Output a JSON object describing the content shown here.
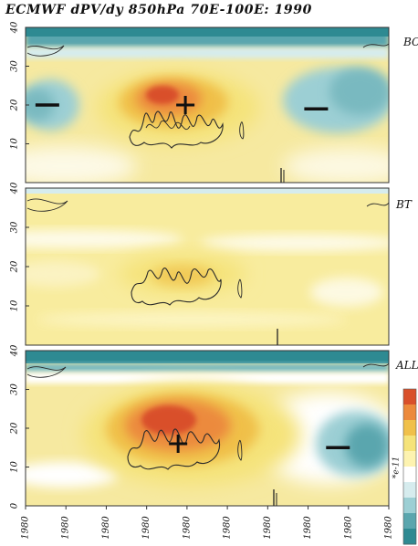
{
  "title": "ECMWF dPV/dy 850hPa 70E-100E: 1990",
  "chart_data": {
    "type": "heatmap",
    "variable": "dPV/dy",
    "level": "850hPa",
    "longitude_band": "70E-100E",
    "year": "1990",
    "colorbar": {
      "unit_label": "*e-11",
      "colors": [
        "#2e8a92",
        "#5aa6ae",
        "#9ccfd4",
        "#d6ecee",
        "#ffffff",
        "#fdf3b0",
        "#f5e37a",
        "#f0c04a",
        "#ec8a3c",
        "#d9502b"
      ]
    },
    "x_tick_labels": [
      "1980",
      "1980",
      "1980",
      "1980",
      "1980",
      "1980",
      "1980",
      "1980",
      "1980",
      "1980"
    ],
    "panels": [
      {
        "label": "BC",
        "y_ticks": [
          10,
          20,
          30,
          40
        ],
        "ylim": [
          0,
          40
        ],
        "features": [
          {
            "sign": "+",
            "x": 0.44,
            "y": 20,
            "kind": "positive maximum"
          },
          {
            "sign": "−",
            "x": 0.06,
            "y": 20,
            "kind": "negative region"
          },
          {
            "sign": "−",
            "x": 0.8,
            "y": 19,
            "kind": "negative region"
          }
        ]
      },
      {
        "label": "BT",
        "y_ticks": [
          10,
          20,
          30,
          40
        ],
        "ylim": [
          0,
          40
        ],
        "features": []
      },
      {
        "label": "ALL",
        "y_ticks": [
          0,
          10,
          20,
          30,
          40
        ],
        "ylim": [
          0,
          40
        ],
        "features": [
          {
            "sign": "+",
            "x": 0.42,
            "y": 16,
            "kind": "positive maximum"
          },
          {
            "sign": "−",
            "x": 0.86,
            "y": 15,
            "kind": "negative region"
          }
        ]
      }
    ]
  }
}
